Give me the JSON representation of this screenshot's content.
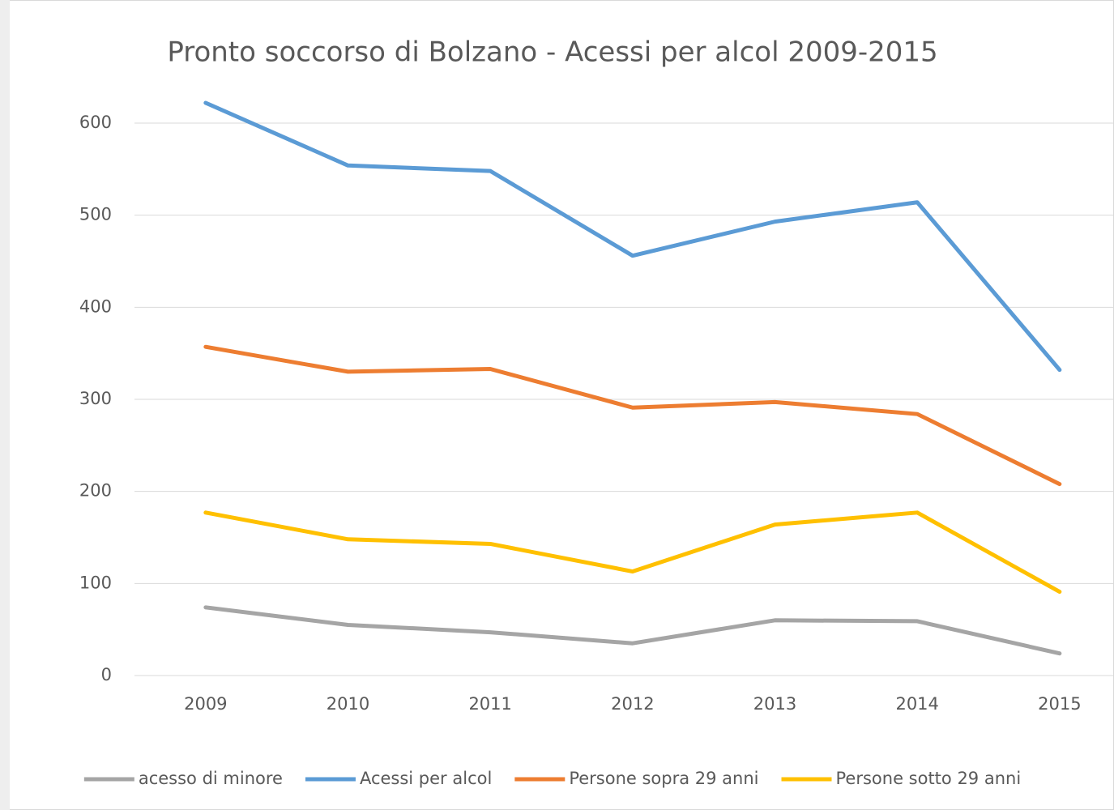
{
  "chart_data": {
    "type": "line",
    "title": "Pronto soccorso di Bolzano - Acessi per alcol 2009-2015",
    "categories": [
      "2009",
      "2010",
      "2011",
      "2012",
      "2013",
      "2014",
      "2015"
    ],
    "series": [
      {
        "name": "acesso di minore",
        "color": "#a5a5a5",
        "values": [
          74,
          55,
          47,
          35,
          60,
          59,
          24
        ]
      },
      {
        "name": "Acessi per alcol",
        "color": "#5b9bd5",
        "values": [
          622,
          554,
          548,
          456,
          493,
          514,
          332
        ]
      },
      {
        "name": "Persone sopra 29 anni",
        "color": "#ed7d31",
        "values": [
          357,
          330,
          333,
          291,
          297,
          284,
          208
        ]
      },
      {
        "name": "Persone sotto 29 anni",
        "color": "#ffc000",
        "values": [
          177,
          148,
          143,
          113,
          164,
          177,
          91
        ]
      }
    ],
    "ylim": [
      0,
      600
    ],
    "yticks": [
      0,
      100,
      200,
      300,
      400,
      500,
      600
    ],
    "grid": true,
    "legend": "bottom"
  }
}
